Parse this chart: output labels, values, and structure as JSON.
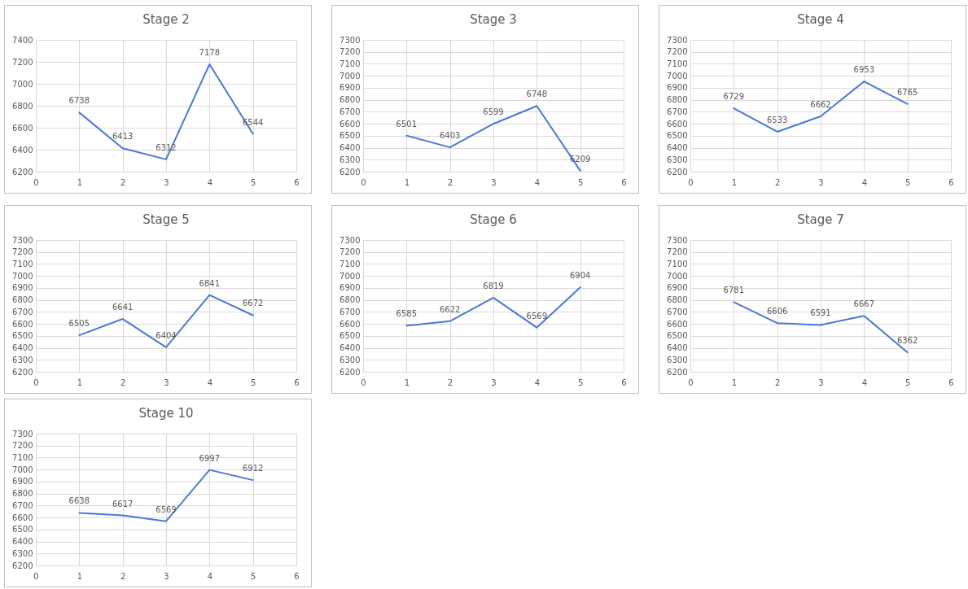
{
  "chart_data": [
    {
      "type": "line",
      "title": "Stage 2",
      "x": [
        1,
        2,
        3,
        4,
        5
      ],
      "values": [
        6738,
        6413,
        6312,
        7178,
        6544
      ],
      "color": "#4a78d6",
      "xlim": [
        0,
        6
      ],
      "xticks": [
        0,
        1,
        2,
        3,
        4,
        5,
        6
      ],
      "ylim": [
        6200,
        7400
      ],
      "yticks": [
        6200,
        6400,
        6600,
        6800,
        7000,
        7200,
        7400
      ],
      "grid": true,
      "data_labels": true
    },
    {
      "type": "line",
      "title": "Stage 3",
      "x": [
        1,
        2,
        3,
        4,
        5
      ],
      "values": [
        6501,
        6403,
        6599,
        6748,
        6209
      ],
      "color": "#4a78d6",
      "xlim": [
        0,
        6
      ],
      "xticks": [
        0,
        1,
        2,
        3,
        4,
        5,
        6
      ],
      "ylim": [
        6200,
        7300
      ],
      "yticks": [
        6200,
        6300,
        6400,
        6500,
        6600,
        6700,
        6800,
        6900,
        7000,
        7100,
        7200,
        7300
      ],
      "grid": true,
      "data_labels": true
    },
    {
      "type": "line",
      "title": "Stage 4",
      "x": [
        1,
        2,
        3,
        4,
        5
      ],
      "values": [
        6729,
        6533,
        6662,
        6953,
        6765
      ],
      "color": "#4a78d6",
      "xlim": [
        0,
        6
      ],
      "xticks": [
        0,
        1,
        2,
        3,
        4,
        5,
        6
      ],
      "ylim": [
        6200,
        7300
      ],
      "yticks": [
        6200,
        6300,
        6400,
        6500,
        6600,
        6700,
        6800,
        6900,
        7000,
        7100,
        7200,
        7300
      ],
      "grid": true,
      "data_labels": true
    },
    {
      "type": "line",
      "title": "Stage 5",
      "x": [
        1,
        2,
        3,
        4,
        5
      ],
      "values": [
        6505,
        6641,
        6404,
        6841,
        6672
      ],
      "color": "#4a78d6",
      "xlim": [
        0,
        6
      ],
      "xticks": [
        0,
        1,
        2,
        3,
        4,
        5,
        6
      ],
      "ylim": [
        6200,
        7300
      ],
      "yticks": [
        6200,
        6300,
        6400,
        6500,
        6600,
        6700,
        6800,
        6900,
        7000,
        7100,
        7200,
        7300
      ],
      "grid": true,
      "data_labels": true
    },
    {
      "type": "line",
      "title": "Stage 6",
      "x": [
        1,
        2,
        3,
        4,
        5
      ],
      "values": [
        6585,
        6622,
        6819,
        6569,
        6904
      ],
      "color": "#4a78d6",
      "xlim": [
        0,
        6
      ],
      "xticks": [
        0,
        1,
        2,
        3,
        4,
        5,
        6
      ],
      "ylim": [
        6200,
        7300
      ],
      "yticks": [
        6200,
        6300,
        6400,
        6500,
        6600,
        6700,
        6800,
        6900,
        7000,
        7100,
        7200,
        7300
      ],
      "grid": true,
      "data_labels": true
    },
    {
      "type": "line",
      "title": "Stage 7",
      "x": [
        1,
        2,
        3,
        4,
        5
      ],
      "values": [
        6781,
        6606,
        6591,
        6667,
        6362
      ],
      "color": "#4a78d6",
      "xlim": [
        0,
        6
      ],
      "xticks": [
        0,
        1,
        2,
        3,
        4,
        5,
        6
      ],
      "ylim": [
        6200,
        7300
      ],
      "yticks": [
        6200,
        6300,
        6400,
        6500,
        6600,
        6700,
        6800,
        6900,
        7000,
        7100,
        7200,
        7300
      ],
      "grid": true,
      "data_labels": true
    },
    {
      "type": "line",
      "title": "Stage 10",
      "x": [
        1,
        2,
        3,
        4,
        5
      ],
      "values": [
        6638,
        6617,
        6569,
        6997,
        6912
      ],
      "color": "#4a78d6",
      "xlim": [
        0,
        6
      ],
      "xticks": [
        0,
        1,
        2,
        3,
        4,
        5,
        6
      ],
      "ylim": [
        6200,
        7300
      ],
      "yticks": [
        6200,
        6300,
        6400,
        6500,
        6600,
        6700,
        6800,
        6900,
        7000,
        7100,
        7200,
        7300
      ],
      "grid": true,
      "data_labels": true
    }
  ]
}
